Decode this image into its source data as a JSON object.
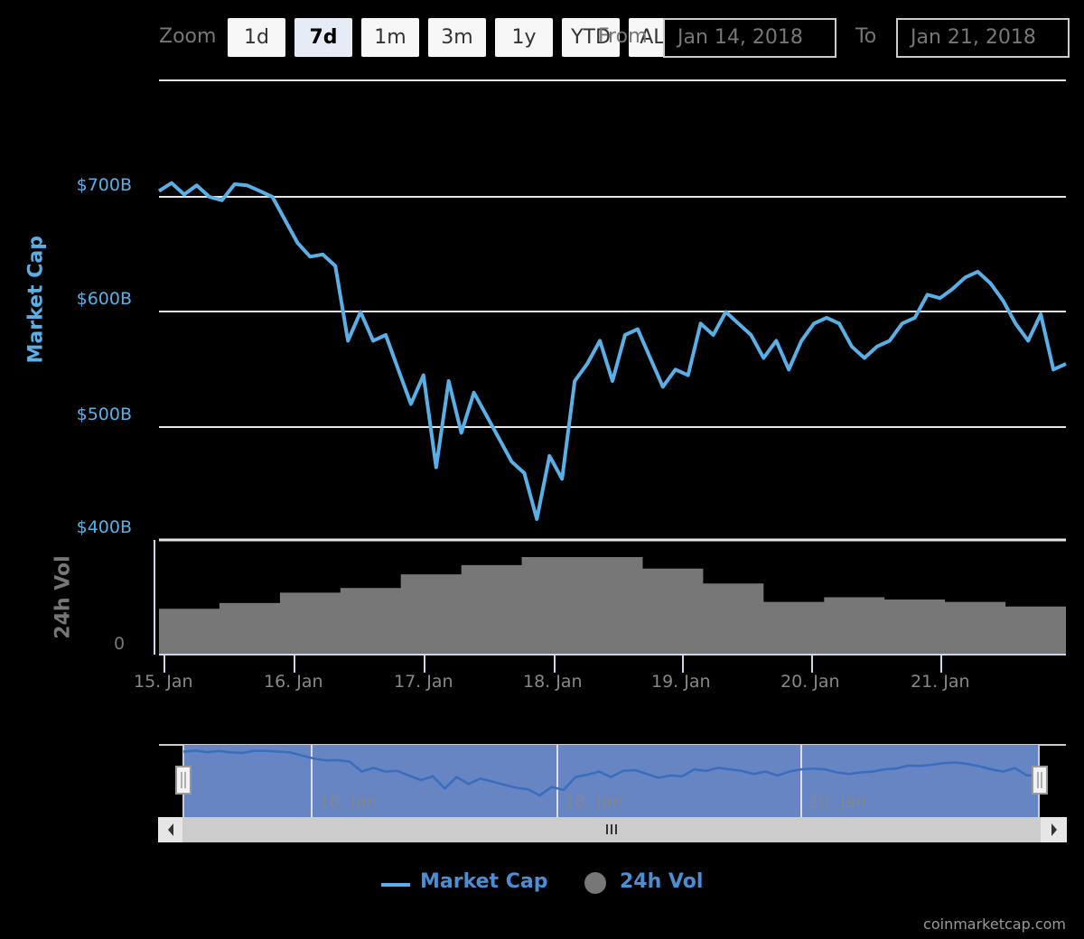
{
  "range_selector": {
    "zoom_label": "Zoom",
    "buttons": [
      {
        "label": "1d",
        "active": false
      },
      {
        "label": "7d",
        "active": true
      },
      {
        "label": "1m",
        "active": false
      },
      {
        "label": "3m",
        "active": false
      },
      {
        "label": "1y",
        "active": false
      },
      {
        "label": "YTD",
        "active": false
      },
      {
        "label": "ALL",
        "active": false
      }
    ],
    "from_label": "From",
    "from_value": "Jan 14, 2018",
    "to_label": "To",
    "to_value": "Jan 21, 2018"
  },
  "axes": {
    "y_title": "Market Cap",
    "y_ticks": [
      "$700B",
      "$600B",
      "$500B",
      "$400B"
    ],
    "vol_title": "24h Vol",
    "vol_ticks": [
      "0"
    ],
    "x_ticks": [
      "15. Jan",
      "16. Jan",
      "17. Jan",
      "18. Jan",
      "19. Jan",
      "20. Jan",
      "21. Jan"
    ]
  },
  "navigator": {
    "labels": [
      "16. Jan",
      "18. Jan",
      "20. Jan"
    ],
    "scrollbar_grip": "|||"
  },
  "legend": {
    "items": [
      {
        "label": "Market Cap",
        "color": "#5ab0e6",
        "symbol": "line"
      },
      {
        "label": "24h Vol",
        "color": "#777777",
        "symbol": "circle"
      }
    ]
  },
  "credits": "coinmarketcap.com",
  "colors": {
    "market_cap": "#5ab0e6",
    "volume": "#777777",
    "navigator_fill": "#6685c2",
    "navigator_line": "#3a6cc0",
    "gridline": "#e6e6e6",
    "background": "#000000"
  },
  "chart_data": {
    "type": "line",
    "title": "",
    "xlabel": "",
    "ylabel": "Market Cap",
    "ylim": [
      400,
      800
    ],
    "y_unit": "$B",
    "x_range": [
      "2018-01-14T23:00",
      "2018-01-21T22:00"
    ],
    "grid": true,
    "legend_position": "bottom",
    "series": [
      {
        "name": "Market Cap",
        "axis": "left",
        "unit": "$B",
        "x": [
          "15 Jan 00:00",
          "15 Jan 03:00",
          "15 Jan 06:00",
          "15 Jan 09:00",
          "15 Jan 12:00",
          "15 Jan 14:00",
          "15 Jan 15:00",
          "15 Jan 18:00",
          "15 Jan 21:00",
          "16 Jan 00:00",
          "16 Jan 02:00",
          "16 Jan 03:00",
          "16 Jan 06:00",
          "16 Jan 08:00",
          "16 Jan 09:00",
          "16 Jan 10:00",
          "16 Jan 12:00",
          "16 Jan 14:00",
          "16 Jan 16:00",
          "16 Jan 18:00",
          "16 Jan 21:00",
          "16 Jan 22:00",
          "17 Jan 00:00",
          "17 Jan 02:00",
          "17 Jan 04:00",
          "17 Jan 06:00",
          "17 Jan 08:00",
          "17 Jan 10:00",
          "17 Jan 12:00",
          "17 Jan 14:00",
          "17 Jan 15:00",
          "17 Jan 16:00",
          "17 Jan 18:00",
          "17 Jan 20:00",
          "17 Jan 21:00",
          "17 Jan 22:00",
          "18 Jan 00:00",
          "18 Jan 02:00",
          "18 Jan 04:00",
          "18 Jan 06:00",
          "18 Jan 08:00",
          "18 Jan 10:00",
          "18 Jan 12:00",
          "18 Jan 14:00",
          "18 Jan 16:00",
          "18 Jan 18:00",
          "18 Jan 20:00",
          "18 Jan 22:00",
          "19 Jan 00:00",
          "19 Jan 03:00",
          "19 Jan 06:00",
          "19 Jan 09:00",
          "19 Jan 12:00",
          "19 Jan 15:00",
          "19 Jan 18:00",
          "19 Jan 21:00",
          "20 Jan 00:00",
          "20 Jan 03:00",
          "20 Jan 06:00",
          "20 Jan 09:00",
          "20 Jan 12:00",
          "20 Jan 15:00",
          "20 Jan 18:00",
          "20 Jan 21:00",
          "21 Jan 00:00",
          "21 Jan 03:00",
          "21 Jan 06:00",
          "21 Jan 09:00",
          "21 Jan 12:00",
          "21 Jan 15:00",
          "21 Jan 18:00",
          "21 Jan 20:00",
          "21 Jan 22:00"
        ],
        "values": [
          705,
          712,
          702,
          710,
          700,
          697,
          711,
          710,
          705,
          700,
          680,
          660,
          648,
          650,
          640,
          575,
          600,
          575,
          580,
          550,
          520,
          545,
          465,
          540,
          495,
          530,
          510,
          490,
          470,
          460,
          420,
          475,
          455,
          540,
          555,
          575,
          540,
          580,
          585,
          560,
          535,
          550,
          545,
          590,
          580,
          600,
          590,
          580,
          560,
          575,
          550,
          575,
          590,
          595,
          590,
          570,
          560,
          570,
          575,
          590,
          595,
          615,
          612,
          620,
          630,
          635,
          625,
          610,
          590,
          575,
          598,
          550,
          555
        ]
      },
      {
        "name": "24h Vol",
        "axis": "volume",
        "unit": "relative",
        "x": [
          "15 Jan",
          "15 Jan 12:00",
          "16 Jan",
          "16 Jan 12:00",
          "17 Jan",
          "17 Jan 12:00",
          "18 Jan",
          "18 Jan 12:00",
          "19 Jan",
          "19 Jan 12:00",
          "20 Jan",
          "20 Jan 12:00",
          "21 Jan",
          "21 Jan 12:00",
          "21 Jan 23:00"
        ],
        "values": [
          40,
          45,
          54,
          58,
          70,
          78,
          85,
          85,
          75,
          62,
          46,
          50,
          48,
          46,
          42
        ]
      }
    ]
  }
}
